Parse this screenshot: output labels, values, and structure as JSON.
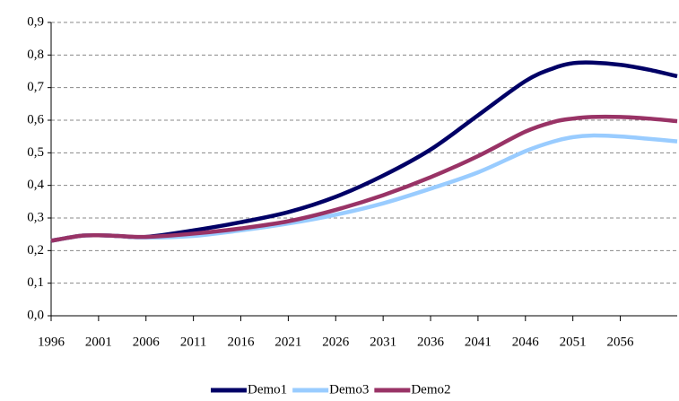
{
  "chart_data": {
    "type": "line",
    "x": [
      1996,
      1999,
      2001,
      2003,
      2006,
      2011,
      2016,
      2021,
      2026,
      2031,
      2036,
      2041,
      2046,
      2049,
      2051,
      2053,
      2056,
      2059,
      2062
    ],
    "series": [
      {
        "name": "Demo1",
        "color": "#000066",
        "values": [
          0.23,
          0.245,
          0.247,
          0.245,
          0.242,
          0.262,
          0.287,
          0.318,
          0.365,
          0.43,
          0.51,
          0.615,
          0.72,
          0.76,
          0.775,
          0.777,
          0.77,
          0.755,
          0.735
        ]
      },
      {
        "name": "Demo3",
        "color": "#99ccff",
        "values": [
          0.23,
          0.245,
          0.247,
          0.245,
          0.24,
          0.245,
          0.262,
          0.283,
          0.31,
          0.345,
          0.39,
          0.44,
          0.505,
          0.535,
          0.548,
          0.553,
          0.55,
          0.543,
          0.535
        ]
      },
      {
        "name": "Demo2",
        "color": "#993366",
        "values": [
          0.23,
          0.245,
          0.247,
          0.245,
          0.242,
          0.252,
          0.268,
          0.29,
          0.325,
          0.37,
          0.425,
          0.49,
          0.565,
          0.595,
          0.605,
          0.61,
          0.61,
          0.605,
          0.597
        ]
      }
    ],
    "xlim": [
      1996,
      2062
    ],
    "xticks": [
      1996,
      2001,
      2006,
      2011,
      2016,
      2021,
      2026,
      2031,
      2036,
      2041,
      2046,
      2051,
      2056
    ],
    "ylim": [
      0,
      0.9
    ],
    "yticks": [
      {
        "value": 0,
        "label": "0,0"
      },
      {
        "value": 0.1,
        "label": "0,1"
      },
      {
        "value": 0.2,
        "label": "0,2"
      },
      {
        "value": 0.3,
        "label": "0,3"
      },
      {
        "value": 0.4,
        "label": "0,4"
      },
      {
        "value": 0.5,
        "label": "0,5"
      },
      {
        "value": 0.6,
        "label": "0,6"
      },
      {
        "value": 0.7,
        "label": "0,7"
      },
      {
        "value": 0.8,
        "label": "0,8"
      },
      {
        "value": 0.9,
        "label": "0,9"
      }
    ],
    "grid": true,
    "legend": "bottom"
  }
}
